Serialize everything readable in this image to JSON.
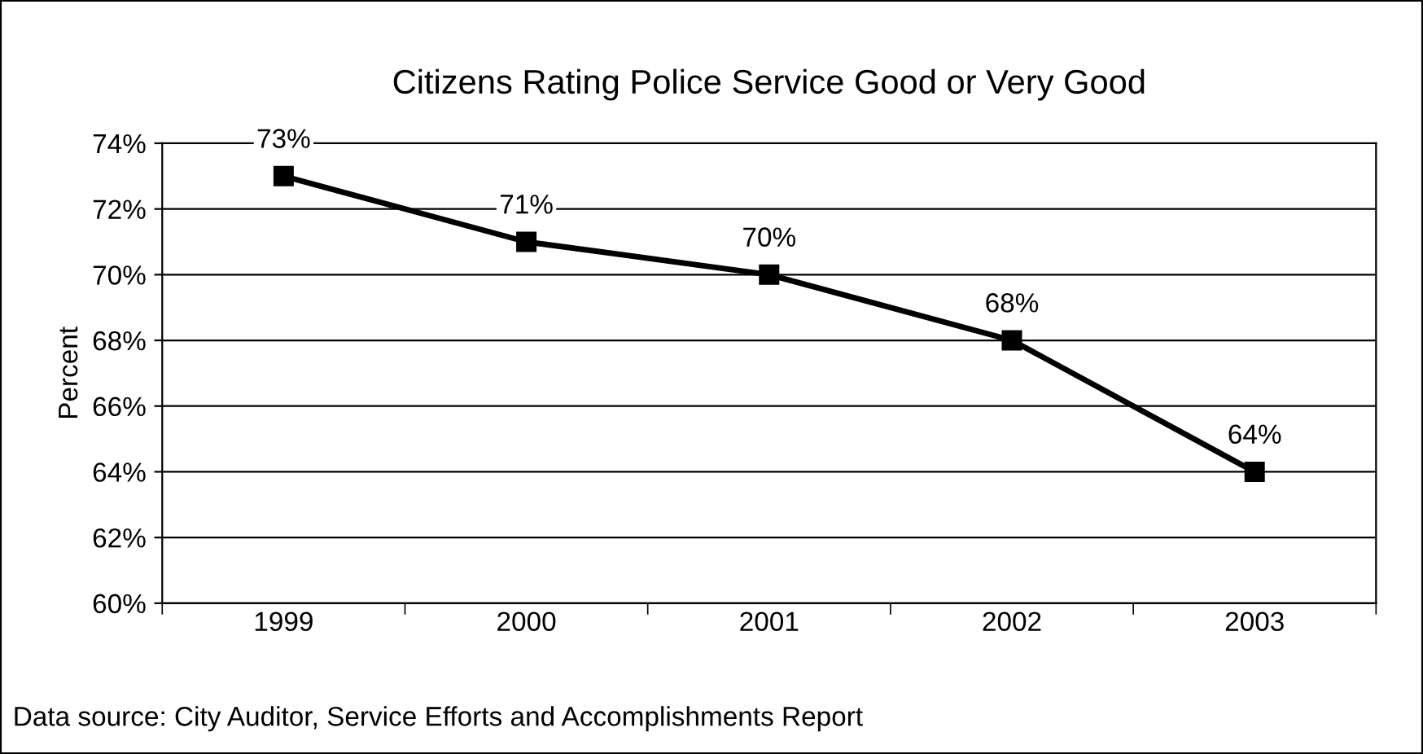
{
  "chart_data": {
    "type": "line",
    "title": "Citizens Rating Police Service Good or Very Good",
    "ylabel": "Percent",
    "categories": [
      "1999",
      "2000",
      "2001",
      "2002",
      "2003"
    ],
    "series": [
      {
        "color": "#000000",
        "values": [
          73,
          71,
          70,
          68,
          64
        ]
      }
    ],
    "value_labels": [
      "73%",
      "71%",
      "70%",
      "68%",
      "64%"
    ],
    "ylim": [
      60,
      74
    ],
    "yticks": [
      {
        "value": 60,
        "label": "60%"
      },
      {
        "value": 62,
        "label": "62%"
      },
      {
        "value": 64,
        "label": "64%"
      },
      {
        "value": 66,
        "label": "66%"
      },
      {
        "value": 68,
        "label": "68%"
      },
      {
        "value": 70,
        "label": "70%"
      },
      {
        "value": 72,
        "label": "72%"
      },
      {
        "value": 74,
        "label": "74%"
      }
    ],
    "grid": "y",
    "marker": "square",
    "line_style": "solid",
    "legend": false,
    "annotations": [
      "Data source: City Auditor, Service Efforts and Accomplishments Report"
    ]
  }
}
